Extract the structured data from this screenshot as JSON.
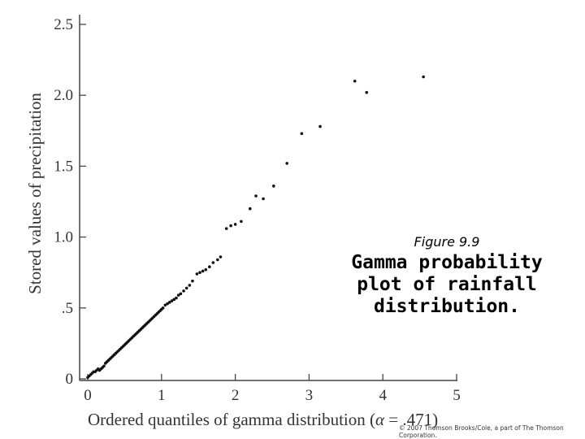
{
  "chart_data": {
    "type": "scatter",
    "title": "",
    "xlabel_prefix": "Ordered quantiles of gamma distribution (",
    "xlabel_alpha": "α",
    "xlabel_value": " = .471)",
    "ylabel": "Stored values of precipitation",
    "xlim": [
      0,
      5
    ],
    "ylim": [
      0,
      2.55
    ],
    "x_ticks": [
      0,
      1,
      2,
      3,
      4,
      5
    ],
    "x_tick_labels": [
      "0",
      "1",
      "2",
      "3",
      "4",
      "5"
    ],
    "y_ticks": [
      0,
      0.5,
      1.0,
      1.5,
      2.0,
      2.5
    ],
    "y_tick_labels": [
      "0",
      ".5",
      "1.0",
      "1.5",
      "2.0",
      "2.5"
    ],
    "grid": false,
    "points": [
      [
        0.0,
        0.01
      ],
      [
        0.02,
        0.02
      ],
      [
        0.04,
        0.03
      ],
      [
        0.06,
        0.04
      ],
      [
        0.08,
        0.05
      ],
      [
        0.1,
        0.05
      ],
      [
        0.12,
        0.06
      ],
      [
        0.14,
        0.07
      ],
      [
        0.16,
        0.06
      ],
      [
        0.18,
        0.07
      ],
      [
        0.2,
        0.08
      ],
      [
        0.22,
        0.09
      ],
      [
        0.24,
        0.11
      ],
      [
        0.26,
        0.12
      ],
      [
        0.28,
        0.13
      ],
      [
        0.3,
        0.14
      ],
      [
        0.32,
        0.15
      ],
      [
        0.34,
        0.16
      ],
      [
        0.36,
        0.17
      ],
      [
        0.38,
        0.18
      ],
      [
        0.4,
        0.19
      ],
      [
        0.42,
        0.2
      ],
      [
        0.44,
        0.21
      ],
      [
        0.46,
        0.22
      ],
      [
        0.48,
        0.23
      ],
      [
        0.5,
        0.24
      ],
      [
        0.52,
        0.25
      ],
      [
        0.54,
        0.26
      ],
      [
        0.56,
        0.27
      ],
      [
        0.58,
        0.28
      ],
      [
        0.6,
        0.29
      ],
      [
        0.62,
        0.3
      ],
      [
        0.64,
        0.31
      ],
      [
        0.66,
        0.32
      ],
      [
        0.68,
        0.33
      ],
      [
        0.7,
        0.34
      ],
      [
        0.72,
        0.35
      ],
      [
        0.74,
        0.36
      ],
      [
        0.76,
        0.37
      ],
      [
        0.78,
        0.38
      ],
      [
        0.8,
        0.39
      ],
      [
        0.82,
        0.4
      ],
      [
        0.84,
        0.41
      ],
      [
        0.86,
        0.42
      ],
      [
        0.88,
        0.43
      ],
      [
        0.9,
        0.44
      ],
      [
        0.92,
        0.45
      ],
      [
        0.94,
        0.46
      ],
      [
        0.96,
        0.47
      ],
      [
        0.98,
        0.48
      ],
      [
        1.0,
        0.49
      ],
      [
        1.02,
        0.5
      ],
      [
        1.05,
        0.52
      ],
      [
        1.08,
        0.53
      ],
      [
        1.11,
        0.54
      ],
      [
        1.14,
        0.55
      ],
      [
        1.17,
        0.56
      ],
      [
        1.2,
        0.57
      ],
      [
        1.23,
        0.59
      ],
      [
        1.26,
        0.6
      ],
      [
        1.3,
        0.62
      ],
      [
        1.34,
        0.64
      ],
      [
        1.38,
        0.66
      ],
      [
        1.42,
        0.69
      ],
      [
        1.48,
        0.74
      ],
      [
        1.52,
        0.75
      ],
      [
        1.56,
        0.76
      ],
      [
        1.6,
        0.77
      ],
      [
        1.65,
        0.79
      ],
      [
        1.7,
        0.82
      ],
      [
        1.76,
        0.84
      ],
      [
        1.8,
        0.86
      ],
      [
        1.88,
        1.06
      ],
      [
        1.94,
        1.08
      ],
      [
        2.0,
        1.09
      ],
      [
        2.08,
        1.11
      ],
      [
        2.2,
        1.2
      ],
      [
        2.28,
        1.29
      ],
      [
        2.38,
        1.27
      ],
      [
        2.52,
        1.36
      ],
      [
        2.7,
        1.52
      ],
      [
        2.9,
        1.73
      ],
      [
        3.15,
        1.78
      ],
      [
        3.62,
        2.1
      ],
      [
        3.78,
        2.02
      ],
      [
        4.55,
        2.13
      ]
    ]
  },
  "caption": {
    "figure_number": "Figure 9.9",
    "title_lines": [
      "Gamma probability",
      "plot of rainfall",
      "distribution."
    ]
  },
  "copyright": "© 2007 Thomson Brooks/Cole, a part of The Thomson Corporation."
}
